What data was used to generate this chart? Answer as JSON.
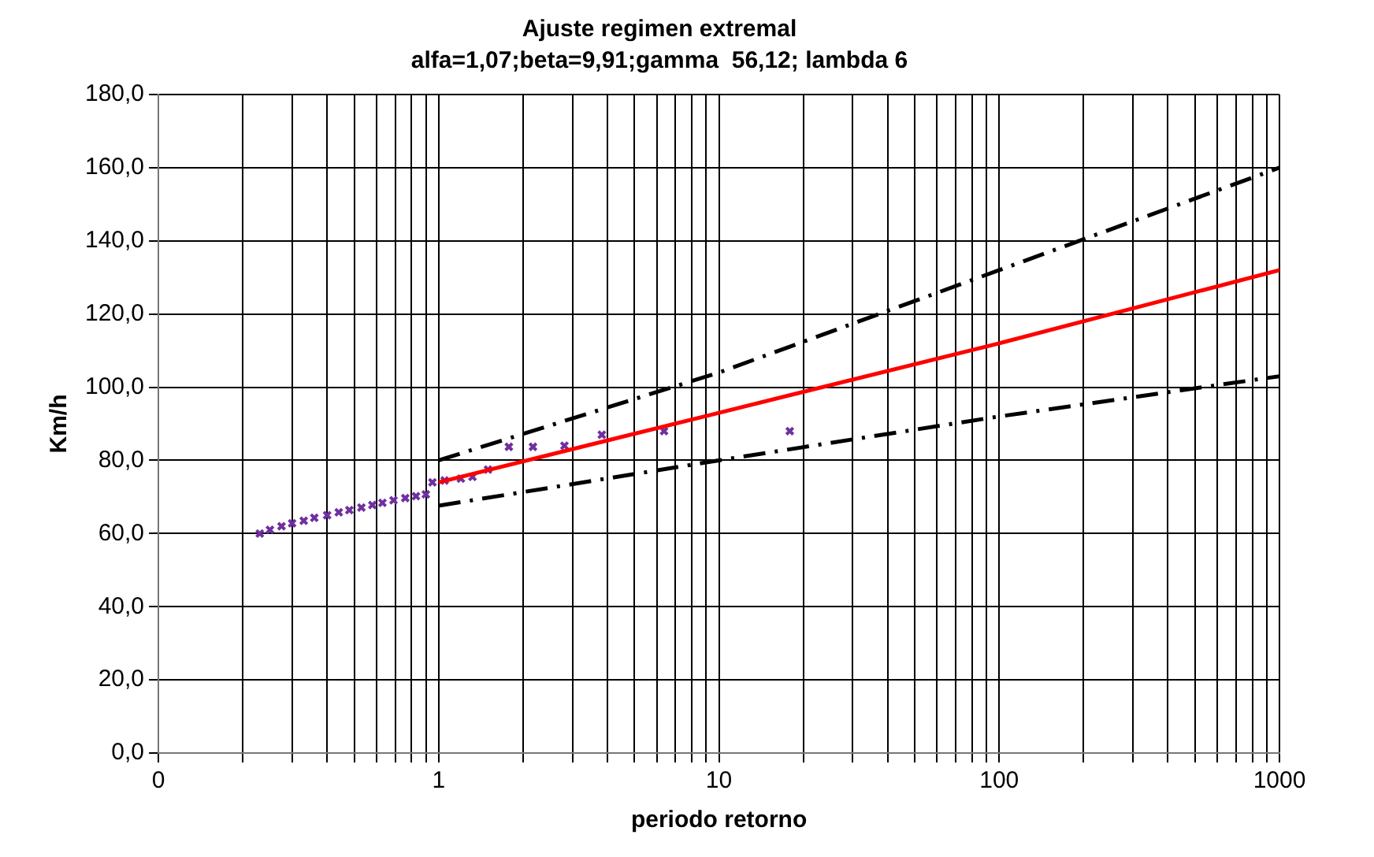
{
  "chart_data": {
    "type": "scatter",
    "title": "Ajuste regimen extremal",
    "subtitle": "alfa=1,07;beta=9,91;gamma  56,12; lambda 6",
    "xlabel": "periodo retorno",
    "ylabel": "Km/h",
    "log": "x",
    "grid": true,
    "legend": false,
    "marker": "cross",
    "xlim": [
      0.1,
      1000
    ],
    "xticks": [
      {
        "value": 0.1,
        "label": "0"
      },
      {
        "value": 0.2,
        "label": null
      },
      {
        "value": 0.3,
        "label": null
      },
      {
        "value": 0.4,
        "label": null
      },
      {
        "value": 0.5,
        "label": null
      },
      {
        "value": 0.6,
        "label": null
      },
      {
        "value": 0.7,
        "label": null
      },
      {
        "value": 0.8,
        "label": null
      },
      {
        "value": 0.9,
        "label": null
      },
      1,
      {
        "value": 2,
        "label": null
      },
      {
        "value": 3,
        "label": null
      },
      {
        "value": 4,
        "label": null
      },
      {
        "value": 5,
        "label": null
      },
      {
        "value": 6,
        "label": null
      },
      {
        "value": 7,
        "label": null
      },
      {
        "value": 8,
        "label": null
      },
      {
        "value": 9,
        "label": null
      },
      10,
      {
        "value": 20,
        "label": null
      },
      {
        "value": 30,
        "label": null
      },
      {
        "value": 40,
        "label": null
      },
      {
        "value": 50,
        "label": null
      },
      {
        "value": 60,
        "label": null
      },
      {
        "value": 70,
        "label": null
      },
      {
        "value": 80,
        "label": null
      },
      {
        "value": 90,
        "label": null
      },
      100,
      {
        "value": 200,
        "label": null
      },
      {
        "value": 300,
        "label": null
      },
      {
        "value": 400,
        "label": null
      },
      {
        "value": 500,
        "label": null
      },
      {
        "value": 600,
        "label": null
      },
      {
        "value": 700,
        "label": null
      },
      {
        "value": 800,
        "label": null
      },
      {
        "value": 900,
        "label": null
      },
      1000
    ],
    "ylim": [
      0,
      180
    ],
    "yticks": [
      {
        "value": 0,
        "label": "0,0"
      },
      {
        "value": 20,
        "label": "20,0"
      },
      {
        "value": 40,
        "label": "40,0"
      },
      {
        "value": 60,
        "label": "60,0"
      },
      {
        "value": 80,
        "label": "80,0"
      },
      {
        "value": 100,
        "label": "100,0"
      },
      {
        "value": 120,
        "label": "120,0"
      },
      {
        "value": 140,
        "label": "140,0"
      },
      {
        "value": 160,
        "label": "160,0"
      },
      {
        "value": 180,
        "label": "180,0"
      }
    ],
    "series": [
      {
        "type": "line",
        "color": "#ff0000",
        "line_style": "solid",
        "marker": "none",
        "x": [
          1,
          10,
          100,
          1000
        ],
        "values": [
          74,
          93,
          112,
          132
        ]
      },
      {
        "type": "line",
        "color": "#000000",
        "line_style": "dashed",
        "marker": "none",
        "x": [
          1,
          10,
          100,
          1000
        ],
        "values": [
          80,
          104,
          132,
          160
        ]
      },
      {
        "type": "line",
        "color": "#000000",
        "line_style": "dashed",
        "marker": "none",
        "x": [
          1,
          10,
          100,
          1000
        ],
        "values": [
          67.6,
          80,
          92,
          103
        ]
      },
      {
        "color": "#7030a0",
        "x": [
          0.23,
          0.25,
          0.275,
          0.3,
          0.33,
          0.36,
          0.4,
          0.44,
          0.48,
          0.53,
          0.58,
          0.63,
          0.69,
          0.76,
          0.83,
          0.9,
          0.95,
          1.05,
          1.2,
          1.32,
          1.5,
          1.78,
          2.17,
          2.81,
          3.82,
          6.37,
          17.9
        ],
        "values": [
          60,
          61,
          62,
          62.8,
          63.5,
          64.3,
          65,
          65.8,
          66.4,
          67.1,
          67.8,
          68.4,
          69.1,
          69.7,
          70.2,
          70.7,
          74,
          74.5,
          75,
          75.5,
          77.5,
          83.7,
          83.7,
          84,
          87,
          88,
          88
        ]
      }
    ]
  }
}
